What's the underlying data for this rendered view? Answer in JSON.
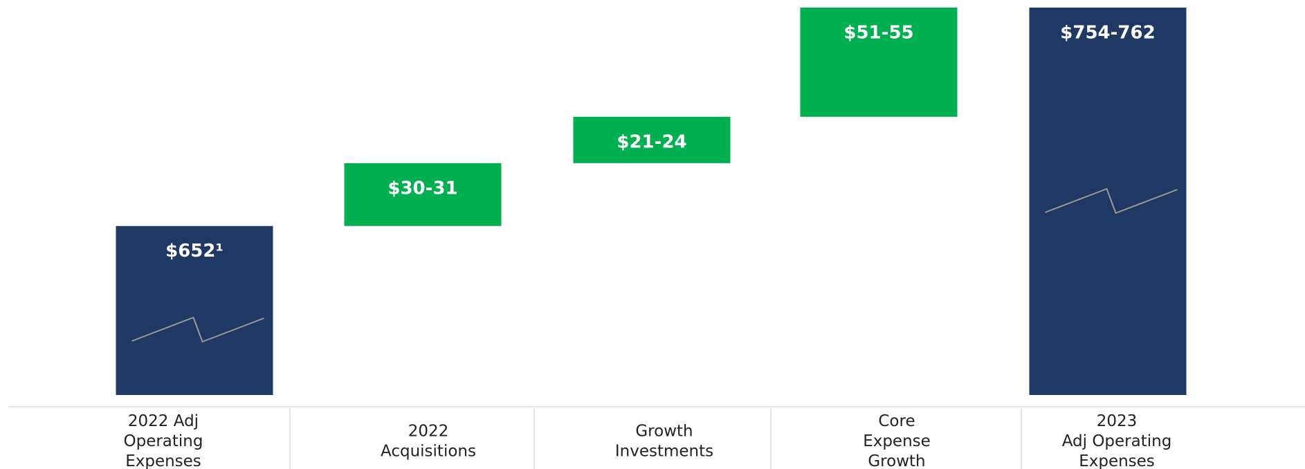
{
  "chart_data": {
    "type": "waterfall",
    "categories": [
      "2022 Adj\nOperating\nExpenses",
      "2022\nAcquisitions",
      "Growth\nInvestments",
      "Core\nExpense\nGrowth",
      "2023\nAdj Operating\nExpenses"
    ],
    "values": [
      652,
      30.5,
      22.5,
      53,
      758
    ],
    "value_labels": [
      "$652¹",
      "$30-31",
      "$21-24",
      "$51-55",
      "$754-762"
    ],
    "totals": [
      true,
      false,
      false,
      false,
      true
    ],
    "total_color": "#203864",
    "increase_color": "#00b050",
    "ylim": [
      570,
      760
    ],
    "axis_break": true
  }
}
